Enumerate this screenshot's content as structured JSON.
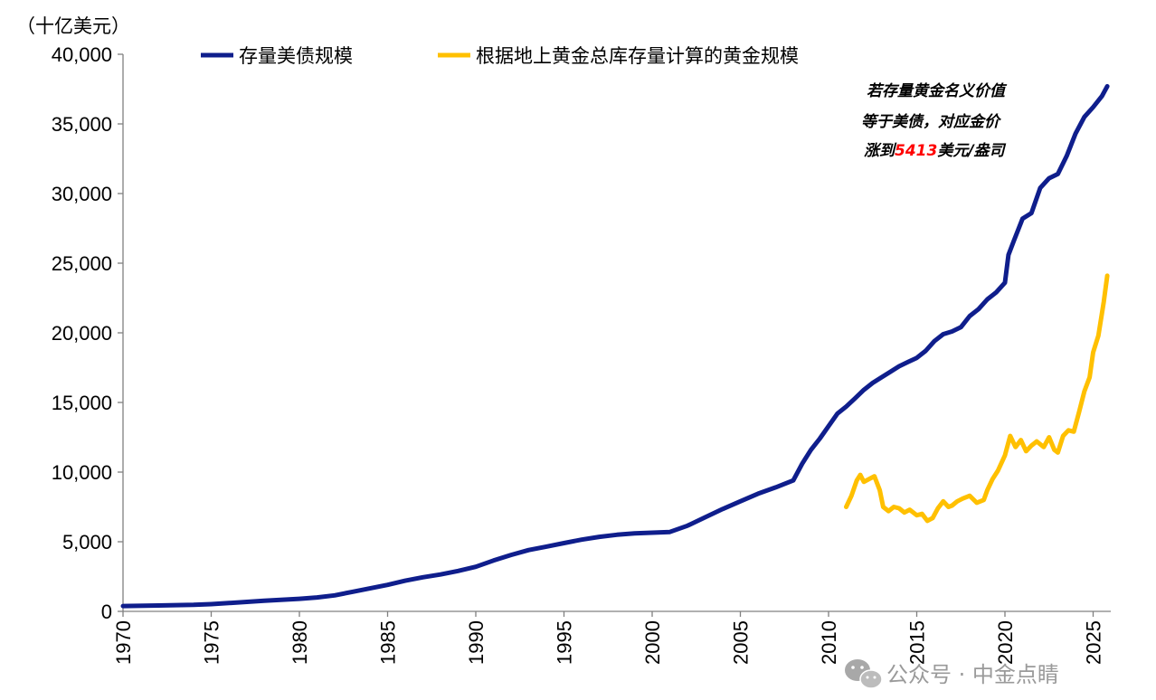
{
  "chart_data": {
    "type": "line",
    "unit_label": "（十亿美元）",
    "ylim": [
      0,
      40000
    ],
    "xlim": [
      1970,
      2026
    ],
    "y_ticks": [
      0,
      5000,
      10000,
      15000,
      20000,
      25000,
      30000,
      35000,
      40000
    ],
    "y_tick_labels": [
      "0",
      "5,000",
      "10,000",
      "15,000",
      "20,000",
      "25,000",
      "30,000",
      "35,000",
      "40,000"
    ],
    "x_ticks": [
      1970,
      1975,
      1980,
      1985,
      1990,
      1995,
      2000,
      2005,
      2010,
      2015,
      2020,
      2025
    ],
    "x_tick_labels": [
      "1970",
      "1975",
      "1980",
      "1985",
      "1990",
      "1995",
      "2000",
      "2005",
      "2010",
      "2015",
      "2020",
      "2025"
    ],
    "grid": false,
    "legend_position": "top",
    "series": [
      {
        "name": "存量美债规模",
        "color": "#0f1e8c",
        "x": [
          1970,
          1972,
          1974,
          1975,
          1976,
          1978,
          1980,
          1981,
          1982,
          1983,
          1984,
          1985,
          1986,
          1987,
          1988,
          1989,
          1990,
          1991,
          1992,
          1993,
          1994,
          1995,
          1996,
          1997,
          1998,
          1999,
          2000,
          2001,
          2002,
          2003,
          2004,
          2005,
          2006,
          2007,
          2008,
          2008.5,
          2009,
          2009.5,
          2010,
          2010.5,
          2011,
          2011.5,
          2012,
          2012.5,
          2013,
          2013.5,
          2014,
          2014.5,
          2015,
          2015.5,
          2016,
          2016.5,
          2017,
          2017.5,
          2018,
          2018.5,
          2019,
          2019.5,
          2020,
          2020.2,
          2020.5,
          2021,
          2021.5,
          2022,
          2022.5,
          2023,
          2023.5,
          2024,
          2024.5,
          2025,
          2025.5,
          2025.8
        ],
        "values": [
          380,
          420,
          470,
          520,
          600,
          760,
          900,
          1000,
          1150,
          1400,
          1650,
          1900,
          2200,
          2450,
          2650,
          2900,
          3200,
          3650,
          4050,
          4400,
          4650,
          4900,
          5150,
          5350,
          5500,
          5600,
          5650,
          5700,
          6150,
          6750,
          7350,
          7900,
          8450,
          8900,
          9400,
          10600,
          11600,
          12400,
          13300,
          14200,
          14700,
          15300,
          15900,
          16400,
          16800,
          17200,
          17600,
          17900,
          18200,
          18700,
          19400,
          19900,
          20100,
          20400,
          21200,
          21700,
          22400,
          22900,
          23600,
          25600,
          26600,
          28200,
          28600,
          30400,
          31100,
          31400,
          32700,
          34300,
          35500,
          36200,
          37000,
          37700
        ]
      },
      {
        "name": "根据地上黄金总库存量计算的黄金规模",
        "color": "#ffc000",
        "x": [
          2011,
          2011.3,
          2011.6,
          2011.8,
          2012,
          2012.3,
          2012.6,
          2012.9,
          2013.1,
          2013.4,
          2013.7,
          2014,
          2014.3,
          2014.6,
          2015,
          2015.3,
          2015.6,
          2015.9,
          2016.2,
          2016.5,
          2016.8,
          2017,
          2017.3,
          2017.6,
          2018,
          2018.4,
          2018.8,
          2019,
          2019.3,
          2019.6,
          2020,
          2020.3,
          2020.6,
          2020.9,
          2021.2,
          2021.5,
          2021.8,
          2022.2,
          2022.5,
          2022.8,
          2023,
          2023.3,
          2023.6,
          2023.9,
          2024.2,
          2024.5,
          2024.8,
          2025,
          2025.3,
          2025.6,
          2025.8
        ],
        "values": [
          7500,
          8300,
          9400,
          9800,
          9300,
          9500,
          9700,
          8700,
          7500,
          7200,
          7500,
          7400,
          7100,
          7300,
          6900,
          7000,
          6500,
          6700,
          7400,
          7900,
          7500,
          7600,
          7900,
          8100,
          8300,
          7800,
          8000,
          8700,
          9500,
          10100,
          11200,
          12600,
          11800,
          12300,
          11500,
          11900,
          12200,
          11800,
          12500,
          11600,
          11400,
          12600,
          13000,
          12900,
          14300,
          15800,
          16800,
          18600,
          19800,
          22200,
          24100
        ]
      }
    ],
    "annotation": {
      "line1": "若存量黄金名义价值",
      "line2": "等于美债，对应金价",
      "line3_prefix": "涨到",
      "line3_value": "5413",
      "line3_suffix": "美元/盎司"
    }
  },
  "watermark": {
    "icon": "wechat-icon",
    "text": "公众号 · 中金点睛"
  }
}
